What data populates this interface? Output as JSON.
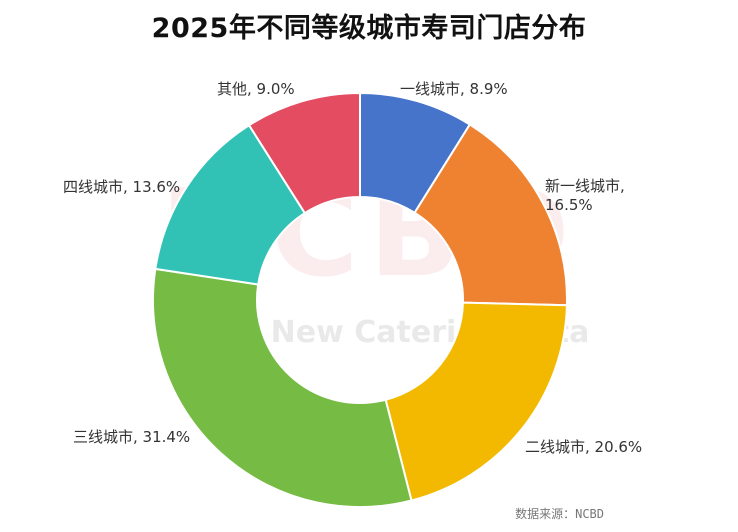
{
  "title": "2025年不同等级城市寿司门店分布",
  "source": "数据来源：NCBD",
  "watermark": {
    "letters": "NCBD",
    "text": "New Catering Data"
  },
  "chart_data": {
    "type": "pie",
    "donut": true,
    "slices": [
      {
        "label": "一线城市",
        "value": 8.9,
        "color": "#4674cb"
      },
      {
        "label": "新一线城市",
        "value": 16.5,
        "color": "#ee8230"
      },
      {
        "label": "二线城市",
        "value": 20.6,
        "color": "#f2b900"
      },
      {
        "label": "三线城市",
        "value": 31.4,
        "color": "#76bc44"
      },
      {
        "label": "四线城市",
        "value": 13.6,
        "color": "#31c2b5"
      },
      {
        "label": "其他",
        "value": 9.0,
        "color": "#e44c62"
      }
    ],
    "value_unit": "%",
    "legend": "none"
  }
}
